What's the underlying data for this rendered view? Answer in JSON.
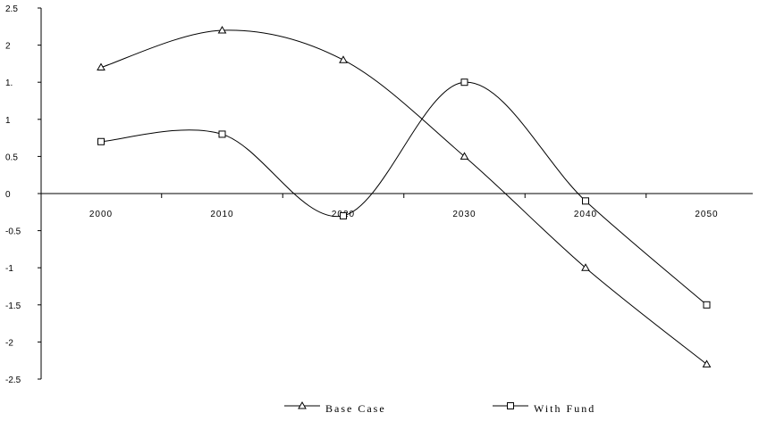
{
  "chart_data": {
    "type": "line",
    "categories": [
      "2000",
      "2010",
      "2020",
      "2030",
      "2040",
      "2050"
    ],
    "y_tick_labels": [
      "2.5",
      "2",
      "1.",
      "1",
      "0.5",
      "0",
      "-0.5",
      "-1",
      "-1.5",
      "-2",
      "-2.5"
    ],
    "ylim": [
      -2.5,
      2.5
    ],
    "grid": false,
    "legend_position": "bottom",
    "series": [
      {
        "name": "Base Case",
        "marker": "triangle",
        "color": "#000000",
        "values": [
          1.7,
          2.2,
          1.8,
          0.5,
          -1.0,
          -2.3
        ]
      },
      {
        "name": "With Fund",
        "marker": "square",
        "color": "#000000",
        "values": [
          0.7,
          0.8,
          -0.3,
          1.5,
          -0.1,
          -1.5
        ]
      }
    ]
  }
}
